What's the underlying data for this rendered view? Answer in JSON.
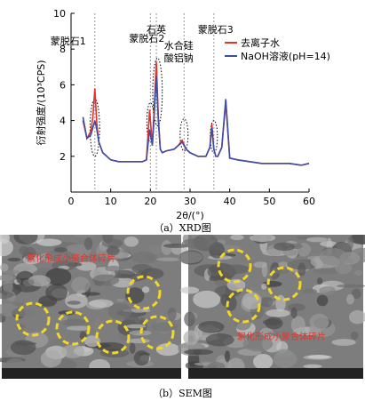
{
  "chart_data": {
    "type": "line",
    "x_label": "2θ/(°)",
    "y_label": "衍射强度/(10³CPS)",
    "x": [
      3,
      4,
      5,
      5.5,
      6,
      6.5,
      7,
      8,
      10,
      12,
      14,
      16,
      18,
      19,
      19.8,
      20.5,
      21,
      21.5,
      22,
      22.5,
      23,
      24,
      26,
      27,
      28,
      29,
      30,
      32,
      34,
      35,
      35.5,
      36,
      36.5,
      37,
      38,
      39,
      40,
      42,
      45,
      48,
      50,
      52,
      55,
      58,
      60
    ],
    "series": [
      {
        "name": "去离子水",
        "color": "#e8322b",
        "values": [
          4.0,
          3.0,
          3.4,
          4.2,
          5.8,
          3.8,
          2.8,
          2.2,
          1.8,
          1.7,
          1.7,
          1.7,
          1.7,
          1.8,
          4.6,
          2.6,
          4.8,
          7.3,
          4.2,
          2.4,
          2.2,
          2.3,
          2.4,
          2.6,
          2.9,
          2.4,
          2.2,
          2.0,
          2.0,
          2.5,
          3.8,
          2.4,
          2.0,
          2.0,
          2.5,
          5.0,
          1.9,
          1.8,
          1.7,
          1.6,
          1.6,
          1.6,
          1.6,
          1.5,
          1.6
        ]
      },
      {
        "name": "NaOH溶液(pH=14)",
        "color": "#3a4fa8",
        "values": [
          4.2,
          3.0,
          3.2,
          3.6,
          4.0,
          3.5,
          2.8,
          2.2,
          1.8,
          1.7,
          1.7,
          1.7,
          1.7,
          1.8,
          3.5,
          2.6,
          4.5,
          6.5,
          4.0,
          2.4,
          2.2,
          2.3,
          2.4,
          2.6,
          2.8,
          2.4,
          2.2,
          2.0,
          2.0,
          2.5,
          3.6,
          2.4,
          2.0,
          2.0,
          2.5,
          5.2,
          1.9,
          1.8,
          1.7,
          1.6,
          1.6,
          1.6,
          1.6,
          1.5,
          1.6
        ]
      }
    ],
    "xlim": [
      0,
      60
    ],
    "xticks": [
      0,
      10,
      20,
      30,
      40,
      50,
      60
    ],
    "ylim": [
      0,
      10
    ],
    "yticks": [
      2,
      4,
      6,
      8,
      10
    ],
    "legend": "upper right",
    "annotations": [
      {
        "lines": [
          "蒙脱石1"
        ],
        "x": 6
      },
      {
        "lines": [
          "蒙脱石2"
        ],
        "x": 20
      },
      {
        "lines": [
          "石英"
        ],
        "x": 21.5
      },
      {
        "lines": [
          "水合硅",
          "酸铝钠"
        ],
        "x": 28.5
      },
      {
        "lines": [
          "蒙脱石3"
        ],
        "x": 36
      }
    ]
  },
  "captions": {
    "a": "（a）XRD图",
    "b": "（b）SEM图"
  },
  "sem": {
    "labels": [
      "絮化形成小聚合体碎片",
      "絮化形成小聚合体碎片"
    ]
  }
}
